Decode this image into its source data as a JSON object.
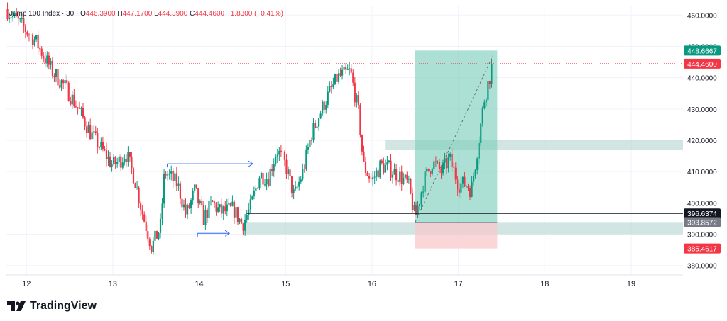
{
  "legend": {
    "symbol": "Jump 100 Index",
    "interval": "30",
    "open_label": "O",
    "open": "446.3900",
    "high_label": "H",
    "high": "447.1700",
    "low_label": "L",
    "low": "444.3900",
    "close_label": "C",
    "close": "444.4600",
    "change": "−1.8300 (−0.41%)"
  },
  "brand": {
    "name": "TradingView",
    "logo_icon": "tradingview-logo-icon"
  },
  "colors": {
    "up": "#089981",
    "down": "#f23645",
    "price_line": "#f23645",
    "profit_zone": "#7fd0bd",
    "loss_zone": "#f8c8cc",
    "zone_band": "#b2d3cf",
    "arrow": "#2962ff",
    "level_line": "#131722",
    "target_badge": "#089981",
    "last_badge": "#f23645",
    "entry_badge": "#787b86",
    "stop_badge": "#f23645",
    "level_badge": "#131722"
  },
  "chart_data": {
    "type": "candlestick",
    "title": "",
    "x_ticks": [
      "12",
      "13",
      "14",
      "15",
      "16",
      "17",
      "18",
      "19"
    ],
    "y_ticks": [
      "380.0000",
      "390.0000",
      "400.0000",
      "410.0000",
      "420.0000",
      "430.0000",
      "440.0000",
      "450.0000",
      "460.0000"
    ],
    "ylim": [
      377,
      463
    ],
    "xlim": [
      11.76,
      19.6
    ],
    "grid": true,
    "price_path": [
      [
        11.76,
        462
      ],
      [
        11.9,
        458
      ],
      [
        12.0,
        455
      ],
      [
        12.1,
        452
      ],
      [
        12.2,
        447
      ],
      [
        12.3,
        442
      ],
      [
        12.45,
        437
      ],
      [
        12.6,
        430
      ],
      [
        12.75,
        422
      ],
      [
        12.9,
        416
      ],
      [
        13.0,
        412
      ],
      [
        13.1,
        414
      ],
      [
        13.15,
        416
      ],
      [
        13.25,
        408
      ],
      [
        13.35,
        396
      ],
      [
        13.45,
        386
      ],
      [
        13.55,
        392
      ],
      [
        13.6,
        410
      ],
      [
        13.75,
        406
      ],
      [
        13.85,
        396
      ],
      [
        13.95,
        404
      ],
      [
        14.05,
        395
      ],
      [
        14.15,
        400
      ],
      [
        14.25,
        397
      ],
      [
        14.4,
        398
      ],
      [
        14.5,
        393
      ],
      [
        14.6,
        399
      ],
      [
        14.7,
        409
      ],
      [
        14.8,
        408
      ],
      [
        14.9,
        417
      ],
      [
        15.0,
        412
      ],
      [
        15.1,
        402
      ],
      [
        15.2,
        410
      ],
      [
        15.3,
        422
      ],
      [
        15.45,
        432
      ],
      [
        15.6,
        440
      ],
      [
        15.75,
        442
      ],
      [
        15.85,
        428
      ],
      [
        15.9,
        412
      ],
      [
        16.0,
        407
      ],
      [
        16.1,
        412
      ],
      [
        16.2,
        411
      ],
      [
        16.3,
        409
      ],
      [
        16.42,
        406
      ],
      [
        16.5,
        395
      ],
      [
        16.6,
        407
      ],
      [
        16.7,
        413
      ],
      [
        16.8,
        410
      ],
      [
        16.9,
        414
      ],
      [
        17.0,
        406
      ],
      [
        17.1,
        406
      ],
      [
        17.15,
        404
      ],
      [
        17.2,
        413
      ],
      [
        17.3,
        433
      ],
      [
        17.4,
        444.46
      ]
    ],
    "current_price": "444.4600",
    "levels": [
      {
        "label": "448.6667",
        "value": 448.6667,
        "role": "target"
      },
      {
        "label": "444.4600",
        "value": 444.46,
        "role": "last"
      },
      {
        "label": "396.6374",
        "value": 396.6374,
        "role": "level"
      },
      {
        "label": "393.8572",
        "value": 393.8572,
        "role": "entry"
      },
      {
        "label": "385.4617",
        "value": 385.4617,
        "role": "stop"
      }
    ],
    "zones": [
      {
        "kind": "supply",
        "x0": 16.15,
        "x1": 19.6,
        "y0": 417,
        "y1": 420
      },
      {
        "kind": "demand",
        "x0": 14.5,
        "x1": 19.6,
        "y0": 390,
        "y1": 393.9
      }
    ],
    "position": {
      "x0": 16.5,
      "x1": 17.45,
      "entry": 393.8572,
      "target": 448.6667,
      "stop": 385.4617
    },
    "level_line": {
      "x0": 14.55,
      "value": 396.6374
    },
    "arrows": [
      {
        "x0": 13.63,
        "x1": 14.62,
        "y": 412.5
      },
      {
        "x0": 13.98,
        "x1": 14.35,
        "y": 390.3
      }
    ]
  }
}
